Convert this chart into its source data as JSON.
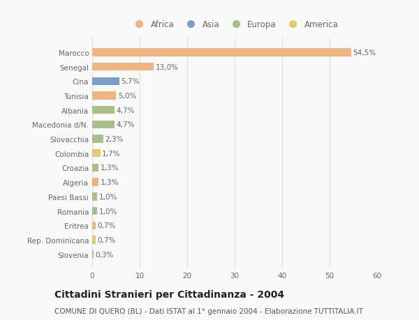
{
  "countries": [
    "Marocco",
    "Senegal",
    "Cina",
    "Tunisia",
    "Albania",
    "Macedonia d/N.",
    "Slovacchia",
    "Colombia",
    "Croazia",
    "Algeria",
    "Paesi Bassi",
    "Romania",
    "Eritrea",
    "Rep. Dominicana",
    "Slovenia"
  ],
  "values": [
    54.5,
    13.0,
    5.7,
    5.0,
    4.7,
    4.7,
    2.3,
    1.7,
    1.3,
    1.3,
    1.0,
    1.0,
    0.7,
    0.7,
    0.3
  ],
  "labels": [
    "54,5%",
    "13,0%",
    "5,7%",
    "5,0%",
    "4,7%",
    "4,7%",
    "2,3%",
    "1,7%",
    "1,3%",
    "1,3%",
    "1,0%",
    "1,0%",
    "0,7%",
    "0,7%",
    "0,3%"
  ],
  "colors": [
    "#f0b482",
    "#f0b482",
    "#7b9dc7",
    "#f0b482",
    "#a8bf8a",
    "#a8bf8a",
    "#a8bf8a",
    "#e8c96a",
    "#a8bf8a",
    "#f0b482",
    "#a8bf8a",
    "#a8bf8a",
    "#f0b482",
    "#e8c96a",
    "#a8bf8a"
  ],
  "legend_labels": [
    "Africa",
    "Asia",
    "Europa",
    "America"
  ],
  "legend_colors": [
    "#f0b482",
    "#7b9dc7",
    "#a8bf8a",
    "#e8c96a"
  ],
  "title": "Cittadini Stranieri per Cittadinanza - 2004",
  "subtitle": "COMUNE DI QUERO (BL) - Dati ISTAT al 1° gennaio 2004 - Elaborazione TUTTITALIA.IT",
  "xlim": [
    0,
    60
  ],
  "xticks": [
    0,
    10,
    20,
    30,
    40,
    50,
    60
  ],
  "background_color": "#f9f9f9",
  "bar_height": 0.55,
  "title_fontsize": 10,
  "subtitle_fontsize": 7.5,
  "label_fontsize": 7.5,
  "tick_fontsize": 7.5,
  "legend_fontsize": 8.5
}
